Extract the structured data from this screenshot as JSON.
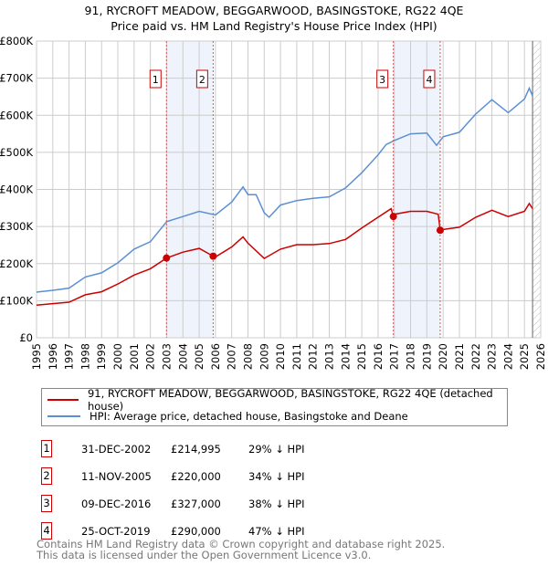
{
  "title": "91, RYCROFT MEADOW, BEGGARWOOD, BASINGSTOKE, RG22 4QE",
  "subtitle": "Price paid vs. HM Land Registry's House Price Index (HPI)",
  "chart_data": {
    "type": "line",
    "xlim": [
      1995,
      2026
    ],
    "ylim": [
      0,
      800000
    ],
    "y_ticks": [
      {
        "v": 0,
        "label": "£0"
      },
      {
        "v": 100000,
        "label": "£100K"
      },
      {
        "v": 200000,
        "label": "£200K"
      },
      {
        "v": 300000,
        "label": "£300K"
      },
      {
        "v": 400000,
        "label": "£400K"
      },
      {
        "v": 500000,
        "label": "£500K"
      },
      {
        "v": 600000,
        "label": "£600K"
      },
      {
        "v": 700000,
        "label": "£700K"
      },
      {
        "v": 800000,
        "label": "£800K"
      }
    ],
    "x_ticks": [
      "1995",
      "1996",
      "1997",
      "1998",
      "1999",
      "2000",
      "2001",
      "2002",
      "2003",
      "2004",
      "2005",
      "2006",
      "2007",
      "2008",
      "2009",
      "2010",
      "2011",
      "2012",
      "2013",
      "2014",
      "2015",
      "2016",
      "2017",
      "2018",
      "2019",
      "2020",
      "2021",
      "2022",
      "2023",
      "2024",
      "2025",
      "2026"
    ],
    "grid": true,
    "forecast_from": 2025.5,
    "colors": {
      "property": "#cc0000",
      "hpi": "#5b8fd4",
      "shade": "#eef3fc",
      "grid": "#cccccc"
    },
    "series": [
      {
        "name": "91, RYCROFT MEADOW, BEGGARWOOD, BASINGSTOKE, RG22 4QE (detached house)",
        "color": "#cc0000",
        "x": [
          1995,
          1996,
          1997,
          1998,
          1999,
          2000,
          2001,
          2002,
          2002.99,
          2004,
          2005,
          2005.86,
          2006,
          2007,
          2007.7,
          2008,
          2009,
          2010,
          2011,
          2012,
          2013,
          2014,
          2015,
          2016,
          2016.8,
          2016.94,
          2017,
          2018,
          2019,
          2019.7,
          2019.82,
          2020,
          2021,
          2022,
          2023,
          2024,
          2025,
          2025.3,
          2025.5
        ],
        "y": [
          88000,
          92000,
          96000,
          116000,
          124000,
          145000,
          169000,
          186000,
          214995,
          231000,
          241000,
          220000,
          218000,
          245000,
          272000,
          255000,
          214000,
          239000,
          251000,
          251000,
          254000,
          265000,
          296000,
          325000,
          348000,
          327000,
          333000,
          341000,
          341000,
          333000,
          290000,
          292000,
          298000,
          325000,
          344000,
          327000,
          341000,
          362000,
          348000
        ]
      },
      {
        "name": "HPI: Average price, detached house, Basingstoke and Deane",
        "color": "#5b8fd4",
        "x": [
          1995,
          1996,
          1997,
          1998,
          1999,
          2000,
          2001,
          2002,
          2003,
          2004,
          2005,
          2006,
          2007,
          2007.7,
          2008,
          2008.5,
          2009,
          2009.3,
          2010,
          2011,
          2012,
          2013,
          2014,
          2015,
          2016,
          2016.5,
          2017,
          2018,
          2019,
          2019.6,
          2020,
          2021,
          2022,
          2023,
          2024,
          2025,
          2025.3,
          2025.5
        ],
        "y": [
          123000,
          128000,
          134000,
          164000,
          175000,
          202000,
          239000,
          259000,
          313000,
          327000,
          341000,
          331000,
          366000,
          407000,
          386000,
          386000,
          337000,
          325000,
          358000,
          370000,
          376000,
          380000,
          404000,
          445000,
          493000,
          521000,
          532000,
          550000,
          552000,
          519000,
          542000,
          554000,
          603000,
          642000,
          607000,
          644000,
          673000,
          652000
        ]
      }
    ],
    "sales": [
      {
        "id": "1",
        "x": 2002.99,
        "date": "31-DEC-2002",
        "price": "£214,995",
        "value": 214995,
        "hpi": "29% ↓ HPI"
      },
      {
        "id": "2",
        "x": 2005.86,
        "date": "11-NOV-2005",
        "price": "£220,000",
        "value": 220000,
        "hpi": "34% ↓ HPI"
      },
      {
        "id": "3",
        "x": 2016.94,
        "date": "09-DEC-2016",
        "price": "£327,000",
        "value": 327000,
        "hpi": "38% ↓ HPI"
      },
      {
        "id": "4",
        "x": 2019.82,
        "date": "25-OCT-2019",
        "price": "£290,000",
        "value": 290000,
        "hpi": "47% ↓ HPI"
      }
    ]
  },
  "legend": {
    "property": "91, RYCROFT MEADOW, BEGGARWOOD, BASINGSTOKE, RG22 4QE (detached house)",
    "hpi": "HPI: Average price, detached house, Basingstoke and Deane"
  },
  "footer": {
    "line1": "Contains HM Land Registry data © Crown copyright and database right 2025.",
    "line2": "This data is licensed under the Open Government Licence v3.0."
  }
}
